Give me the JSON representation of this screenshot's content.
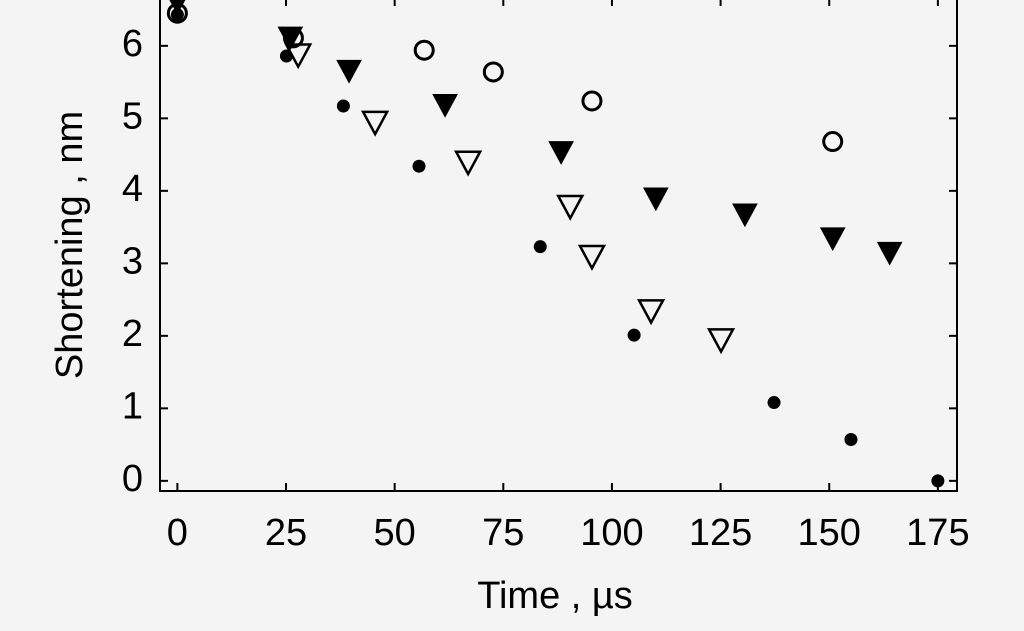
{
  "chart_data": {
    "type": "scatter",
    "x_label": "Time , µs",
    "y_label": "Shortening , nm",
    "xlim": [
      -4,
      179.4
    ],
    "ylim": [
      -0.14,
      6.66
    ],
    "xticks": [
      0,
      25,
      50,
      75,
      100,
      125,
      150,
      175
    ],
    "yticks": [
      0,
      1,
      2,
      3,
      4,
      5,
      6
    ],
    "series": [
      {
        "marker": "circle",
        "filled": true,
        "color": "#000000",
        "x": [
          0,
          25.1,
          38.2,
          55.6,
          83.5,
          105.1,
          137.3,
          155,
          175
        ],
        "values": [
          6.43,
          5.86,
          5.17,
          4.34,
          3.23,
          2.01,
          1.08,
          0.57,
          0
        ]
      },
      {
        "marker": "circle",
        "filled": false,
        "color": "#000000",
        "x": [
          0,
          26.7,
          56.8,
          72.7,
          95.4,
          150.8
        ],
        "values": [
          6.45,
          6.11,
          5.94,
          5.64,
          5.24,
          4.68
        ]
      },
      {
        "marker": "triangle-down",
        "filled": true,
        "color": "#000000",
        "x": [
          0,
          26,
          39.5,
          61.6,
          88.3,
          110.1,
          130.6,
          150.8,
          163.9
        ],
        "values": [
          6.6,
          6.11,
          5.65,
          5.18,
          4.53,
          3.89,
          3.67,
          3.34,
          3.14
        ]
      },
      {
        "marker": "triangle-down",
        "filled": false,
        "color": "#000000",
        "x": [
          27.8,
          45.5,
          66.9,
          90.4,
          95.4,
          109,
          125.1
        ],
        "values": [
          5.87,
          4.94,
          4.39,
          3.78,
          3.09,
          2.34,
          1.94
        ]
      }
    ]
  }
}
